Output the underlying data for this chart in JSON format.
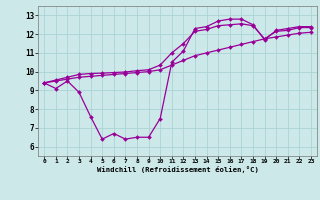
{
  "xlabel": "Windchill (Refroidissement éolien,°C)",
  "bg_color": "#cce8e8",
  "line_color": "#990099",
  "marker_color": "#990099",
  "xlim": [
    -0.5,
    23.5
  ],
  "ylim": [
    5.5,
    13.5
  ],
  "xticks": [
    0,
    1,
    2,
    3,
    4,
    5,
    6,
    7,
    8,
    9,
    10,
    11,
    12,
    13,
    14,
    15,
    16,
    17,
    18,
    19,
    20,
    21,
    22,
    23
  ],
  "yticks": [
    6,
    7,
    8,
    9,
    10,
    11,
    12,
    13
  ],
  "grid_color": "#aad4d4",
  "curves": [
    {
      "x": [
        0,
        1,
        2,
        3,
        4,
        5,
        6,
        7,
        8,
        9,
        10,
        11,
        12,
        13,
        14,
        15,
        16,
        17,
        18,
        19,
        20,
        21,
        22,
        23
      ],
      "y": [
        9.4,
        9.1,
        9.5,
        8.9,
        7.6,
        6.4,
        6.7,
        6.4,
        6.5,
        6.5,
        7.5,
        10.5,
        11.1,
        12.3,
        12.4,
        12.7,
        12.8,
        12.8,
        12.5,
        11.7,
        12.2,
        12.3,
        12.4,
        12.4
      ]
    },
    {
      "x": [
        0,
        1,
        2,
        3,
        4,
        5,
        6,
        7,
        8,
        9,
        10,
        11,
        12,
        13,
        14,
        15,
        16,
        17,
        18,
        19,
        20,
        21,
        22,
        23
      ],
      "y": [
        9.4,
        9.5,
        9.6,
        9.7,
        9.75,
        9.8,
        9.85,
        9.9,
        9.95,
        10.0,
        10.1,
        10.35,
        10.6,
        10.85,
        11.0,
        11.15,
        11.3,
        11.45,
        11.6,
        11.75,
        11.85,
        11.95,
        12.05,
        12.1
      ]
    },
    {
      "x": [
        0,
        1,
        2,
        3,
        4,
        5,
        6,
        7,
        8,
        9,
        10,
        11,
        12,
        13,
        14,
        15,
        16,
        17,
        18,
        19,
        20,
        21,
        22,
        23
      ],
      "y": [
        9.4,
        9.55,
        9.7,
        9.85,
        9.9,
        9.92,
        9.95,
        9.98,
        10.05,
        10.1,
        10.35,
        11.0,
        11.5,
        12.15,
        12.25,
        12.45,
        12.5,
        12.55,
        12.45,
        11.75,
        12.15,
        12.2,
        12.35,
        12.35
      ]
    }
  ]
}
